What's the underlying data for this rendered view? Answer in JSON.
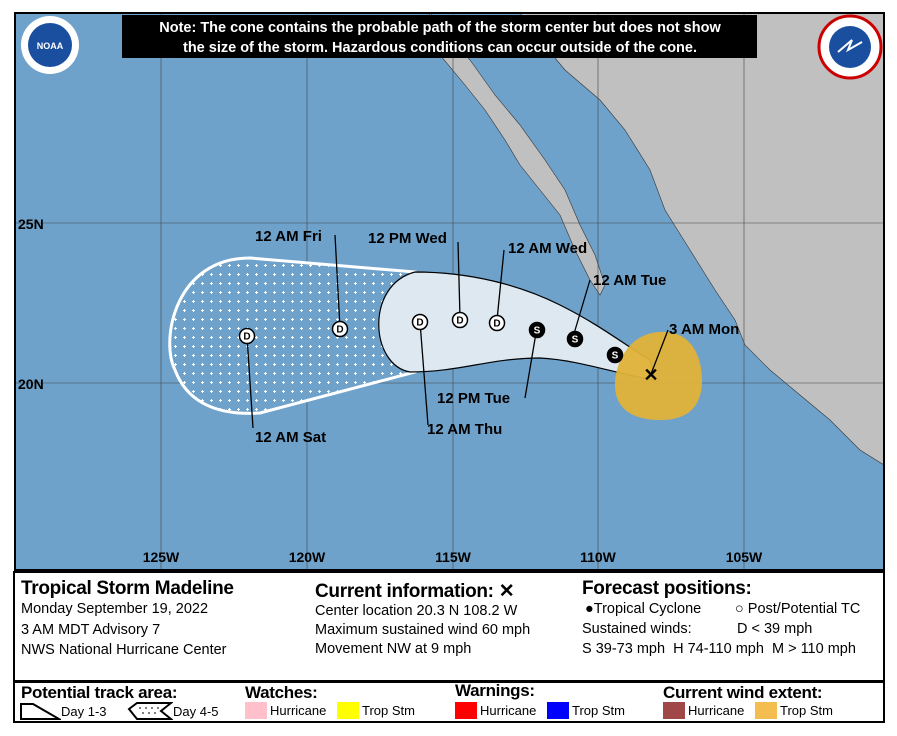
{
  "note": [
    "Note: The cone contains the probable path of the storm center but does not show",
    "the size of the storm. Hazardous conditions can occur outside of the cone."
  ],
  "logos": {
    "left": "NOAA",
    "right": "NATIONAL WEATHER SERVICE"
  },
  "axes": {
    "lon": [
      "125W",
      "120W",
      "115W",
      "110W",
      "105W"
    ],
    "lat": [
      "25N",
      "20N"
    ]
  },
  "colors": {
    "ocean": "#6fa2cb",
    "land": "#c0c0c0",
    "cone_fill": "#dde8f0",
    "trop_storm_wind": "#e0b238"
  },
  "track_labels": [
    "12 AM Fri",
    "12 PM Wed",
    "12 AM Wed",
    "12 AM Tue",
    "3 AM Mon",
    "12 PM Tue",
    "12 AM Thu",
    "12 AM Sat"
  ],
  "points": [
    {
      "type": "S"
    },
    {
      "type": "S"
    },
    {
      "type": "S"
    },
    {
      "type": "D"
    },
    {
      "type": "D"
    },
    {
      "type": "D"
    },
    {
      "type": "D"
    },
    {
      "type": "D"
    }
  ],
  "info": {
    "title": "Tropical Storm Madeline",
    "date": "Monday September 19, 2022",
    "advisory": "3 AM MDT Advisory 7",
    "center": "NWS National Hurricane Center",
    "current_title": "Current information:",
    "current_icon": "x-mark",
    "location": "Center location 20.3 N 108.2 W",
    "wind": "Maximum sustained wind 60 mph",
    "movement": "Movement NW at 9 mph",
    "forecast_title": "Forecast positions:",
    "tc": "Tropical Cyclone",
    "ptc": "Post/Potential TC",
    "sustained": "Sustained winds:",
    "d": "D < 39 mph",
    "s": "S 39-73 mph",
    "hh": "H 74-110 mph",
    "m": "M > 110 mph"
  },
  "legend": {
    "track_title": "Potential track area:",
    "day13": "Day 1-3",
    "day45": "Day 4-5",
    "watches_title": "Watches:",
    "warnings_title": "Warnings:",
    "wind_title": "Current wind extent:",
    "hurricane": "Hurricane",
    "trop_stm": "Trop Stm",
    "watch_colors": [
      "#ffc0cb",
      "#ffff00"
    ],
    "warning_colors": [
      "#ff0000",
      "#0000ff"
    ],
    "wind_colors": [
      "#a04848",
      "#f3bd4f"
    ]
  }
}
